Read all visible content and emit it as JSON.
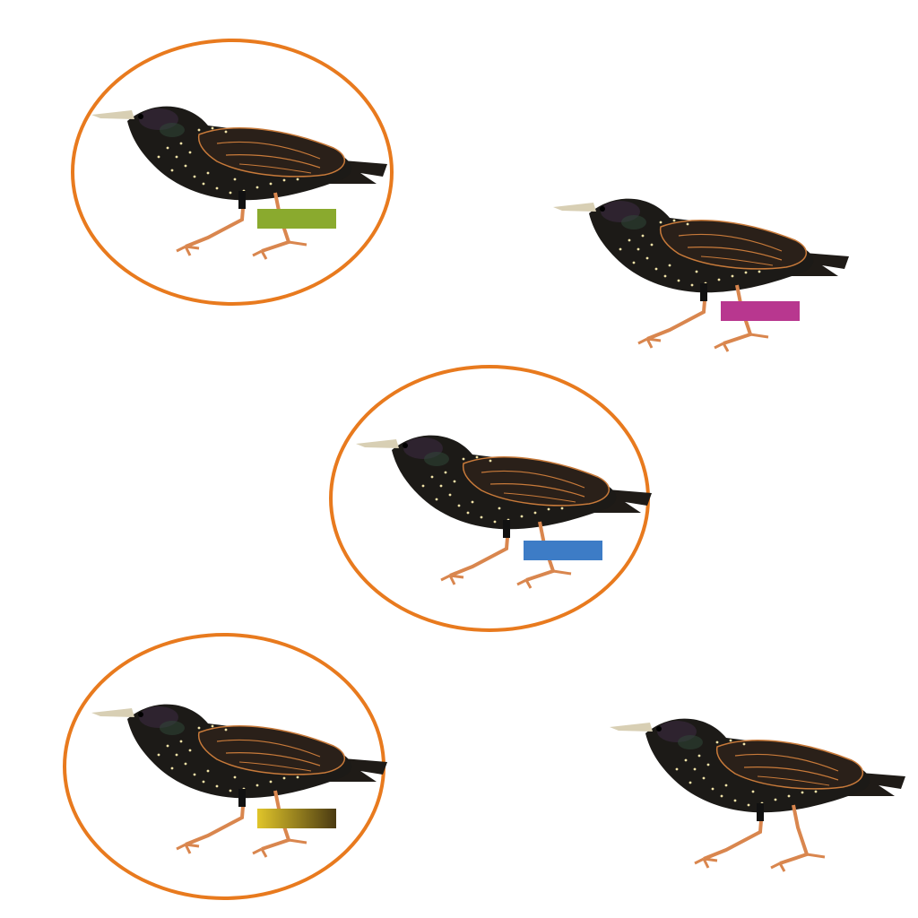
{
  "scene": {
    "description_visible_text": "",
    "bird_count": 5,
    "colors": {
      "background": "#ffffff",
      "ring": "#e87a1e",
      "plumage": "#1c1a17",
      "wing_edge": "#c87a3a",
      "legs": "#d9864e",
      "beak": "#d8cfb4",
      "speckle": "#f1e3a8"
    },
    "birds": [
      {
        "name": "starling-1",
        "circled": true,
        "band": {
          "color": "#8aaa2e"
        }
      },
      {
        "name": "starling-2",
        "circled": false,
        "band": {
          "color": "#b8378f"
        }
      },
      {
        "name": "starling-3",
        "circled": true,
        "band": {
          "color": "#3d7cc6"
        }
      },
      {
        "name": "starling-4",
        "circled": true,
        "band": {
          "color_start": "#e0c52a",
          "color_end": "#4a3a12"
        }
      },
      {
        "name": "starling-5",
        "circled": false,
        "band": null
      }
    ]
  }
}
